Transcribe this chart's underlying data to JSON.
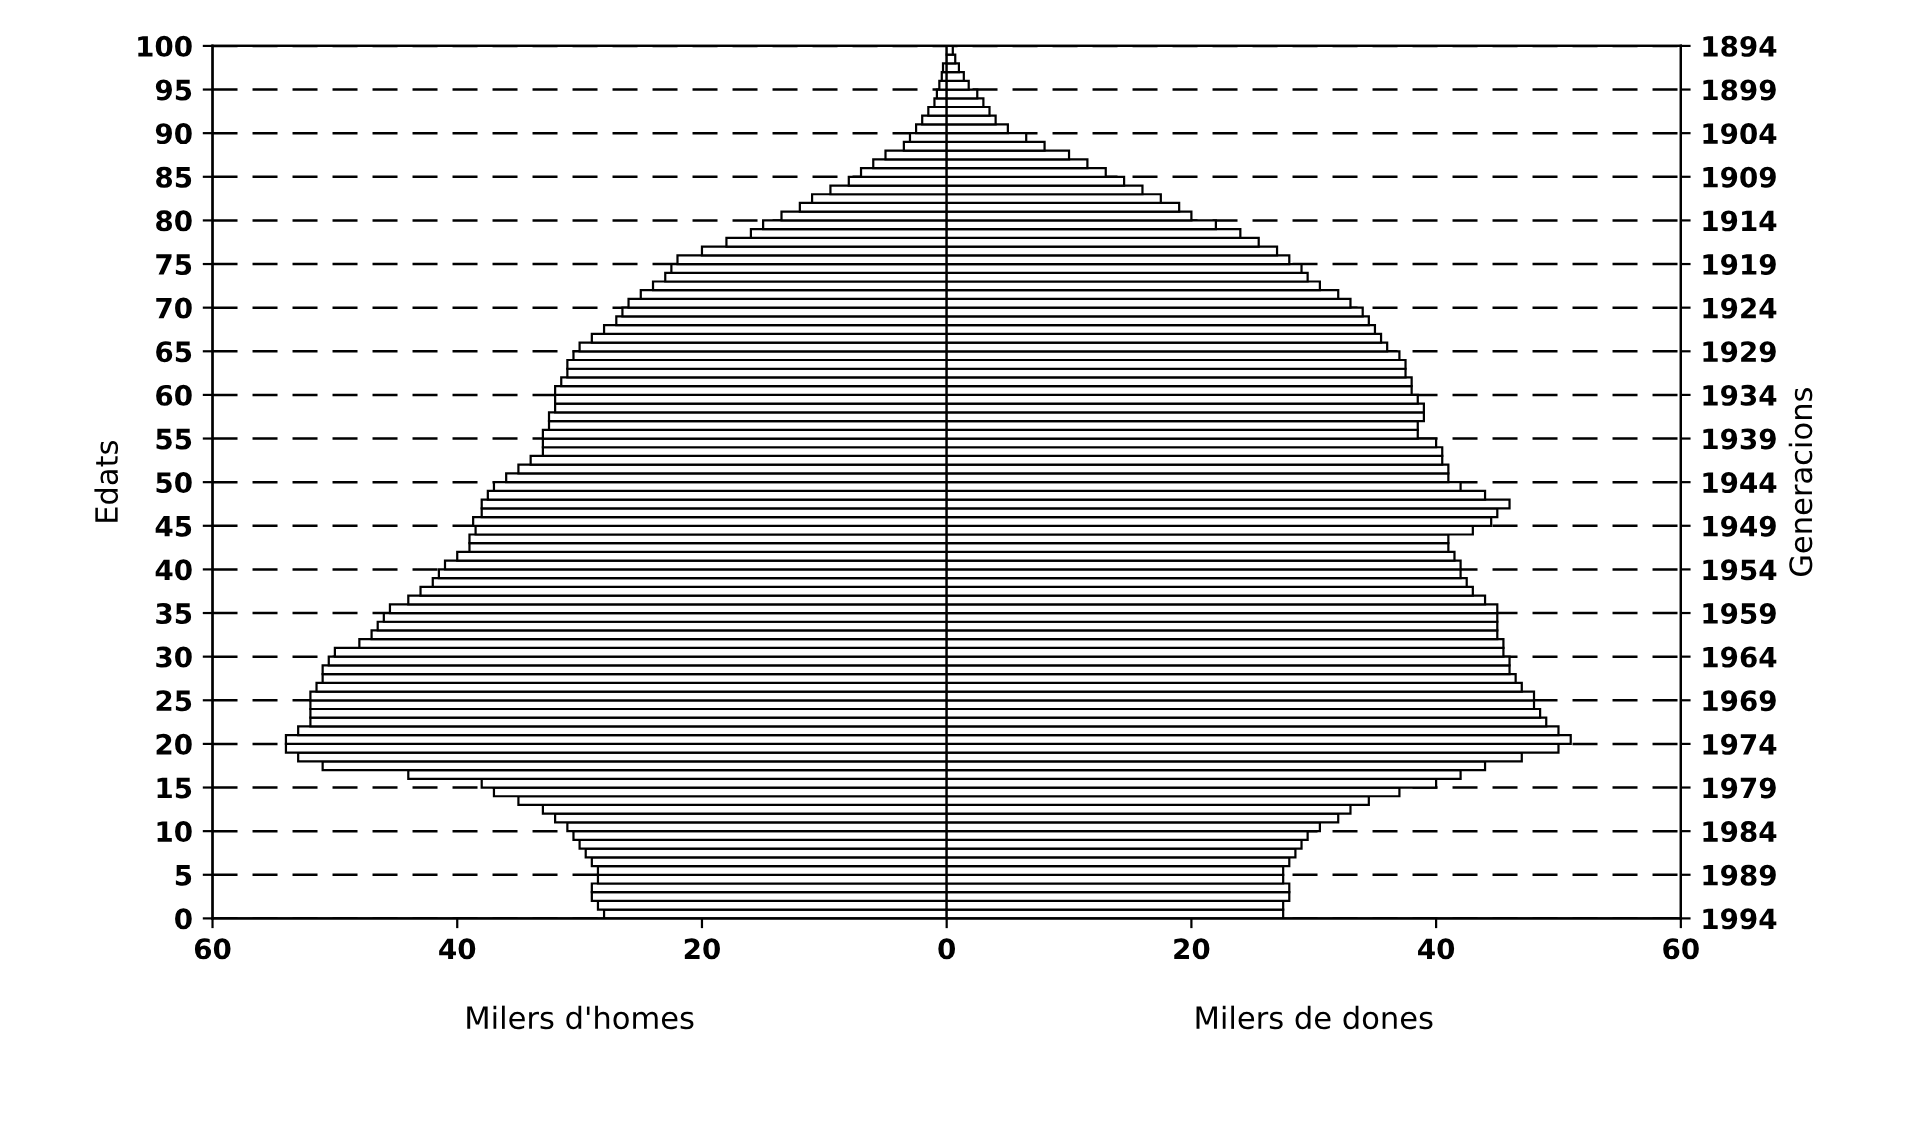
{
  "chart_data": {
    "type": "bar",
    "orientation": "horizontal",
    "ylabel": "Edats",
    "y2label": "Generacions",
    "x": [
      0,
      1,
      2,
      3,
      4,
      5,
      6,
      7,
      8,
      9,
      10,
      11,
      12,
      13,
      14,
      15,
      16,
      17,
      18,
      19,
      20,
      21,
      22,
      23,
      24,
      25,
      26,
      27,
      28,
      29,
      30,
      31,
      32,
      33,
      34,
      35,
      36,
      37,
      38,
      39,
      40,
      41,
      42,
      43,
      44,
      45,
      46,
      47,
      48,
      49,
      50,
      51,
      52,
      53,
      54,
      55,
      56,
      57,
      58,
      59,
      60,
      61,
      62,
      63,
      64,
      65,
      66,
      67,
      68,
      69,
      70,
      71,
      72,
      73,
      74,
      75,
      76,
      77,
      78,
      79,
      80,
      81,
      82,
      83,
      84,
      85,
      86,
      87,
      88,
      89,
      90,
      91,
      92,
      93,
      94,
      95,
      96,
      97,
      98,
      99
    ],
    "series": [
      {
        "color": "#000000",
        "values": [
          -28,
          -28.5,
          -29,
          -29,
          -28.5,
          -28.5,
          -29,
          -29.5,
          -30,
          -30.5,
          -31,
          -32,
          -33,
          -35,
          -37,
          -38,
          -44,
          -51,
          -53,
          -54,
          -54,
          -53,
          -52,
          -52,
          -52,
          -52,
          -51.5,
          -51,
          -51,
          -50.5,
          -50,
          -48,
          -47,
          -46.5,
          -46,
          -45.5,
          -44,
          -43,
          -42,
          -41.5,
          -41,
          -40,
          -39,
          -39,
          -38.5,
          -38.7,
          -38,
          -38,
          -37.5,
          -37,
          -36,
          -35,
          -34,
          -33,
          -33,
          -33,
          -32.5,
          -32.5,
          -32,
          -32,
          -32,
          -31.5,
          -31,
          -31,
          -30.5,
          -30,
          -29,
          -28,
          -27,
          -26.5,
          -26,
          -25,
          -24,
          -23,
          -22.5,
          -22,
          -20,
          -18,
          -16,
          -15,
          -13.5,
          -12,
          -11,
          -9.5,
          -8,
          -7,
          -6,
          -5,
          -3.5,
          -3,
          -2.5,
          -2,
          -1.5,
          -1,
          -0.8,
          -0.6,
          -0.4,
          -0.3,
          null,
          null
        ]
      },
      {
        "color": "#000000",
        "values": [
          27.5,
          27.5,
          28,
          28,
          27.5,
          27.5,
          28,
          28.5,
          29,
          29.5,
          30.5,
          32,
          33,
          34.5,
          37,
          40,
          42,
          44,
          47,
          50,
          51,
          50,
          49,
          48.5,
          48,
          48,
          47,
          46.5,
          46,
          46,
          45.5,
          45.5,
          45,
          45,
          45,
          45,
          44,
          43,
          42.5,
          42,
          42,
          41.5,
          41,
          41,
          43,
          44.5,
          45,
          46,
          44,
          42,
          41,
          41,
          40.5,
          40.5,
          40,
          38.5,
          38.5,
          39,
          39,
          38.5,
          38,
          38,
          37.5,
          37.5,
          37,
          36,
          35.5,
          35,
          34.5,
          34,
          33,
          32,
          30.5,
          29.5,
          29,
          28,
          27,
          25.5,
          24,
          22,
          20,
          19,
          17.5,
          16,
          14.5,
          13,
          11.5,
          10,
          8,
          6.5,
          5,
          4,
          3.5,
          3,
          2.5,
          1.8,
          1.4,
          1,
          0.7,
          0.5
        ]
      }
    ],
    "xlim": [
      -60,
      60
    ],
    "xticks": [
      {
        "value": -60,
        "label": "60"
      },
      {
        "value": -40,
        "label": "40"
      },
      {
        "value": -20,
        "label": "20"
      },
      0,
      20,
      40,
      60
    ],
    "ylim": [
      0,
      100
    ],
    "yticks": [
      0,
      5,
      10,
      15,
      20,
      25,
      30,
      35,
      40,
      45,
      50,
      55,
      60,
      65,
      70,
      75,
      80,
      85,
      90,
      95,
      100
    ],
    "y2lim": [
      1994,
      1894
    ],
    "y2ticks": [
      1994,
      1989,
      1984,
      1979,
      1974,
      1969,
      1964,
      1959,
      1954,
      1949,
      1944,
      1939,
      1934,
      1929,
      1924,
      1919,
      1914,
      1909,
      1904,
      1899,
      1894
    ],
    "annotations": [
      "Milers d'homes",
      "Milers de dones"
    ],
    "stacked": true,
    "grid": "y",
    "line_style": "dashed",
    "legend": false
  }
}
